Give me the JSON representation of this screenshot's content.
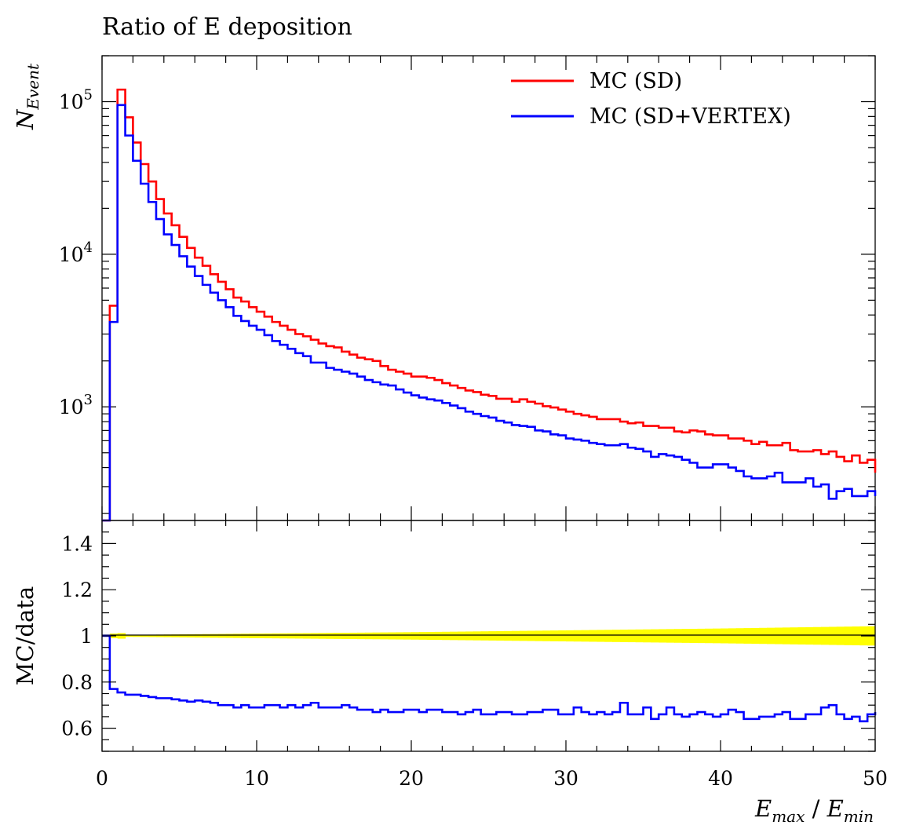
{
  "chart_data": [
    {
      "panel": "main",
      "type": "line",
      "title": "Ratio of E deposition",
      "xlabel": "E_max / E_min",
      "ylabel": "N_Event",
      "xlim": [
        0,
        50
      ],
      "ylim": [
        180,
        200000
      ],
      "yscale": "log",
      "grid": false,
      "legend_position": "top-right",
      "x_tick_labels": [
        "0",
        "10",
        "20",
        "30",
        "40",
        "50"
      ],
      "y_tick_labels": [
        {
          "mantissa": "10",
          "exponent": "3"
        },
        {
          "mantissa": "10",
          "exponent": "4"
        },
        {
          "mantissa": "10",
          "exponent": "5"
        }
      ],
      "bin_edges": [
        0,
        0.5,
        1,
        1.5,
        2,
        2.5,
        3,
        3.5,
        4,
        4.5,
        5,
        5.5,
        6,
        6.5,
        7,
        7.5,
        8,
        8.5,
        9,
        9.5,
        10,
        10.5,
        11,
        11.5,
        12,
        12.5,
        13,
        13.5,
        14,
        14.5,
        15,
        15.5,
        16,
        16.5,
        17,
        17.5,
        18,
        18.5,
        19,
        19.5,
        20,
        20.5,
        21,
        21.5,
        22,
        22.5,
        23,
        23.5,
        24,
        24.5,
        25,
        25.5,
        26,
        26.5,
        27,
        27.5,
        28,
        28.5,
        29,
        29.5,
        30,
        30.5,
        31,
        31.5,
        32,
        32.5,
        33,
        33.5,
        34,
        34.5,
        35,
        35.5,
        36,
        36.5,
        37,
        37.5,
        38,
        38.5,
        39,
        39.5,
        40,
        40.5,
        41,
        41.5,
        42,
        42.5,
        43,
        43.5,
        44,
        44.5,
        45,
        45.5,
        46,
        46.5,
        47,
        47.5,
        48,
        48.5,
        49,
        49.5,
        50
      ],
      "series": [
        {
          "name": "MC (SD)",
          "color": "#ff0000",
          "values": [
            0,
            4600,
            120000,
            79000,
            54000,
            39000,
            30000,
            23000,
            18500,
            15500,
            13000,
            11000,
            9500,
            8400,
            7400,
            6600,
            5900,
            5200,
            4900,
            4500,
            4200,
            3900,
            3600,
            3400,
            3200,
            3000,
            2900,
            2750,
            2600,
            2500,
            2450,
            2300,
            2200,
            2100,
            2050,
            2000,
            1850,
            1750,
            1700,
            1650,
            1580,
            1580,
            1550,
            1500,
            1430,
            1380,
            1330,
            1280,
            1250,
            1200,
            1180,
            1130,
            1130,
            1080,
            1120,
            1080,
            1050,
            1010,
            990,
            960,
            930,
            900,
            880,
            860,
            830,
            830,
            830,
            800,
            780,
            790,
            750,
            750,
            730,
            730,
            690,
            680,
            700,
            690,
            660,
            650,
            650,
            620,
            620,
            600,
            570,
            590,
            560,
            560,
            580,
            520,
            510,
            510,
            520,
            490,
            510,
            470,
            440,
            480,
            430,
            450,
            370
          ]
        },
        {
          "name": "MC (SD+VERTEX)",
          "color": "#0000ff",
          "values": [
            0,
            3600,
            95000,
            60000,
            41000,
            29000,
            22000,
            17000,
            13500,
            11500,
            9700,
            8300,
            7200,
            6300,
            5600,
            5000,
            4500,
            3950,
            3650,
            3400,
            3200,
            2950,
            2700,
            2550,
            2400,
            2250,
            2150,
            1950,
            1950,
            1800,
            1750,
            1700,
            1650,
            1580,
            1500,
            1450,
            1400,
            1380,
            1300,
            1240,
            1190,
            1150,
            1120,
            1100,
            1060,
            1020,
            980,
            930,
            900,
            870,
            850,
            810,
            790,
            760,
            750,
            740,
            700,
            690,
            660,
            650,
            620,
            610,
            600,
            580,
            570,
            560,
            560,
            570,
            540,
            530,
            510,
            470,
            490,
            480,
            470,
            450,
            430,
            400,
            400,
            420,
            420,
            400,
            380,
            350,
            340,
            340,
            350,
            370,
            320,
            320,
            320,
            340,
            300,
            310,
            250,
            280,
            290,
            260,
            260,
            280,
            260
          ]
        }
      ]
    },
    {
      "panel": "ratio",
      "type": "line",
      "ylabel": "MC/data",
      "xlim": [
        0,
        50
      ],
      "ylim": [
        0.5,
        1.5
      ],
      "grid": false,
      "reference_line": 1,
      "y_tick_labels": [
        "0.6",
        "0.8",
        "1",
        "1.2",
        "1.4"
      ],
      "uncertainty_band": {
        "color": "#ffff00",
        "center": 1,
        "half_width_at_x": [
          [
            0.5,
            0.0
          ],
          [
            1,
            0.02
          ],
          [
            1.5,
            0.004
          ],
          [
            10,
            0.01
          ],
          [
            20,
            0.016
          ],
          [
            30,
            0.024
          ],
          [
            40,
            0.032
          ],
          [
            50,
            0.042
          ]
        ]
      },
      "series": [
        {
          "name": "MC (SD+VERTEX)",
          "color": "#0000ff",
          "values": [
            1,
            0.77,
            0.755,
            0.745,
            0.745,
            0.74,
            0.735,
            0.73,
            0.73,
            0.725,
            0.72,
            0.715,
            0.72,
            0.715,
            0.71,
            0.7,
            0.7,
            0.69,
            0.7,
            0.69,
            0.69,
            0.7,
            0.7,
            0.69,
            0.7,
            0.69,
            0.7,
            0.71,
            0.69,
            0.69,
            0.69,
            0.7,
            0.69,
            0.68,
            0.68,
            0.67,
            0.68,
            0.67,
            0.67,
            0.68,
            0.68,
            0.67,
            0.68,
            0.68,
            0.67,
            0.67,
            0.66,
            0.67,
            0.68,
            0.66,
            0.66,
            0.67,
            0.67,
            0.66,
            0.66,
            0.67,
            0.67,
            0.68,
            0.68,
            0.66,
            0.66,
            0.69,
            0.67,
            0.66,
            0.67,
            0.66,
            0.67,
            0.71,
            0.66,
            0.66,
            0.69,
            0.64,
            0.66,
            0.69,
            0.66,
            0.65,
            0.66,
            0.67,
            0.66,
            0.65,
            0.66,
            0.68,
            0.67,
            0.64,
            0.64,
            0.65,
            0.65,
            0.66,
            0.67,
            0.64,
            0.64,
            0.66,
            0.66,
            0.69,
            0.7,
            0.66,
            0.64,
            0.65,
            0.63,
            0.66,
            0.67,
            0.68,
            0.67,
            0.66,
            0.72
          ]
        }
      ]
    }
  ]
}
